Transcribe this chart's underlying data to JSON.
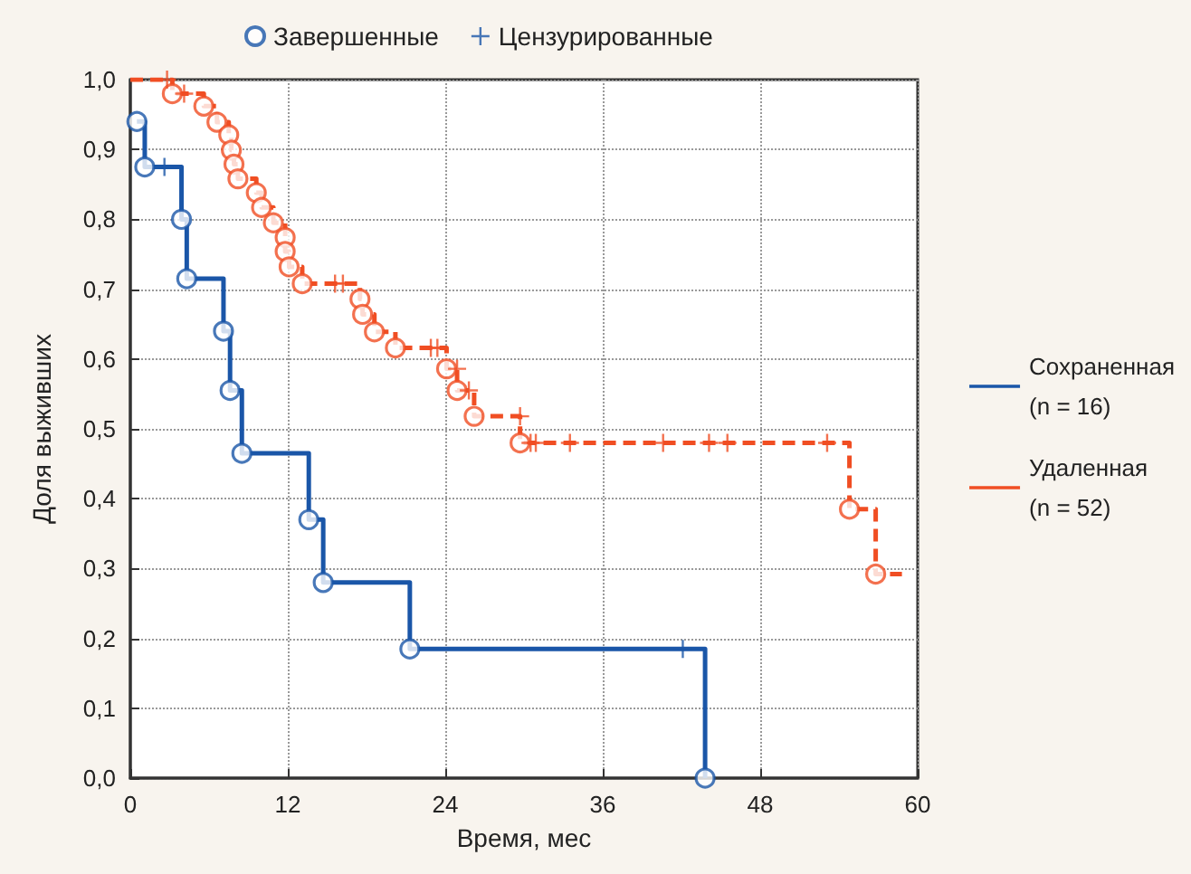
{
  "chart_data": {
    "type": "step",
    "xlabel": "Время, мес",
    "ylabel": "Доля выживших",
    "xlim": [
      0,
      60
    ],
    "xticks": [
      0,
      12,
      24,
      36,
      48,
      60
    ],
    "ylim": [
      0,
      1
    ],
    "yticks": [
      {
        "value": 0,
        "label": "0,0"
      },
      {
        "value": 0.1,
        "label": "0,1"
      },
      {
        "value": 0.2,
        "label": "0,2"
      },
      {
        "value": 0.3,
        "label": "0,3"
      },
      {
        "value": 0.4,
        "label": "0,4"
      },
      {
        "value": 0.5,
        "label": "0,5"
      },
      {
        "value": 0.6,
        "label": "0,6"
      },
      {
        "value": 0.7,
        "label": "0,7"
      },
      {
        "value": 0.8,
        "label": "0,8"
      },
      {
        "value": 0.9,
        "label": "0,9"
      },
      {
        "value": 1,
        "label": "1,0"
      }
    ],
    "grid": true,
    "legend": "right",
    "series": [
      {
        "name": "Сохраненная (n = 16)",
        "type": "step",
        "color": "#1a56a8",
        "line_style": "solid",
        "marker": "none",
        "x": [
          0.5,
          1.1,
          3.9,
          4.3,
          7.1,
          7.6,
          8.5,
          13.6,
          14.7,
          21.3,
          43.8
        ],
        "values": [
          0.94,
          0.875,
          0.8,
          0.715,
          0.64,
          0.555,
          0.465,
          0.37,
          0.28,
          0.185,
          0
        ]
      },
      {
        "name": "Удаленная (n = 52)",
        "type": "step",
        "color": "#f04e23",
        "line_style": "dashed",
        "marker": "none",
        "x": [
          0,
          3.2,
          5.6,
          6.6,
          7.5,
          7.7,
          7.9,
          8.2,
          9.6,
          10.0,
          10.9,
          11.8,
          11.8,
          12.1,
          13.1,
          17.5,
          17.7,
          18.6,
          20.2,
          24.1,
          24.9,
          26.2,
          29.7,
          54.8,
          56.8,
          58.8
        ],
        "values": [
          1.0,
          0.98,
          0.962,
          0.939,
          0.921,
          0.899,
          0.879,
          0.858,
          0.838,
          0.817,
          0.795,
          0.774,
          0.754,
          0.732,
          0.708,
          0.686,
          0.664,
          0.639,
          0.616,
          0.586,
          0.555,
          0.518,
          0.48,
          0.385,
          0.292,
          0.292
        ]
      },
      {
        "name": "Завершенные",
        "type": "scatter",
        "color": "#1a56a8",
        "marker": "circle",
        "x": [
          0.5,
          1.1,
          3.9,
          4.3,
          7.1,
          7.6,
          8.5,
          13.6,
          14.7,
          21.3,
          43.8,
          3.2,
          5.6,
          6.6,
          7.5,
          7.7,
          7.9,
          8.2,
          9.6,
          10.0,
          10.9,
          11.8,
          11.8,
          12.1,
          13.1,
          17.5,
          17.7,
          18.6,
          20.2,
          24.1,
          24.9,
          26.2,
          29.7,
          54.8,
          56.8
        ],
        "values": [
          0.94,
          0.875,
          0.8,
          0.715,
          0.64,
          0.555,
          0.465,
          0.37,
          0.28,
          0.185,
          0,
          0.98,
          0.962,
          0.939,
          0.921,
          0.899,
          0.879,
          0.858,
          0.838,
          0.817,
          0.795,
          0.774,
          0.754,
          0.732,
          0.708,
          0.686,
          0.664,
          0.639,
          0.616,
          0.586,
          0.555,
          0.518,
          0.48,
          0.385,
          0.292
        ],
        "colors": [
          "#1a56a8",
          "#1a56a8",
          "#1a56a8",
          "#1a56a8",
          "#1a56a8",
          "#1a56a8",
          "#1a56a8",
          "#1a56a8",
          "#1a56a8",
          "#1a56a8",
          "#1a56a8",
          "#f04e23",
          "#f04e23",
          "#f04e23",
          "#f04e23",
          "#f04e23",
          "#f04e23",
          "#f04e23",
          "#f04e23",
          "#f04e23",
          "#f04e23",
          "#f04e23",
          "#f04e23",
          "#f04e23",
          "#f04e23",
          "#f04e23",
          "#f04e23",
          "#f04e23",
          "#f04e23",
          "#f04e23",
          "#f04e23",
          "#f04e23",
          "#f04e23",
          "#f04e23",
          "#f04e23"
        ]
      },
      {
        "name": "Цензурированные",
        "type": "scatter",
        "color": "#1a56a8",
        "marker": "cross",
        "x": [
          2.6,
          42.1,
          2.8,
          4.1,
          15.6,
          16.2,
          22.9,
          23.4,
          24.9,
          25.8,
          29.7,
          30.5,
          30.9,
          33.5,
          40.6,
          44.1,
          45.5,
          53.1
        ],
        "values": [
          0.875,
          0.185,
          1.0,
          0.98,
          0.708,
          0.708,
          0.616,
          0.616,
          0.586,
          0.555,
          0.518,
          0.48,
          0.48,
          0.48,
          0.48,
          0.48,
          0.48,
          0.48
        ],
        "colors": [
          "#1a56a8",
          "#1a56a8",
          "#f04e23",
          "#f04e23",
          "#f04e23",
          "#f04e23",
          "#f04e23",
          "#f04e23",
          "#f04e23",
          "#f04e23",
          "#f04e23",
          "#f04e23",
          "#f04e23",
          "#f04e23",
          "#f04e23",
          "#f04e23",
          "#f04e23",
          "#f04e23"
        ]
      }
    ]
  }
}
